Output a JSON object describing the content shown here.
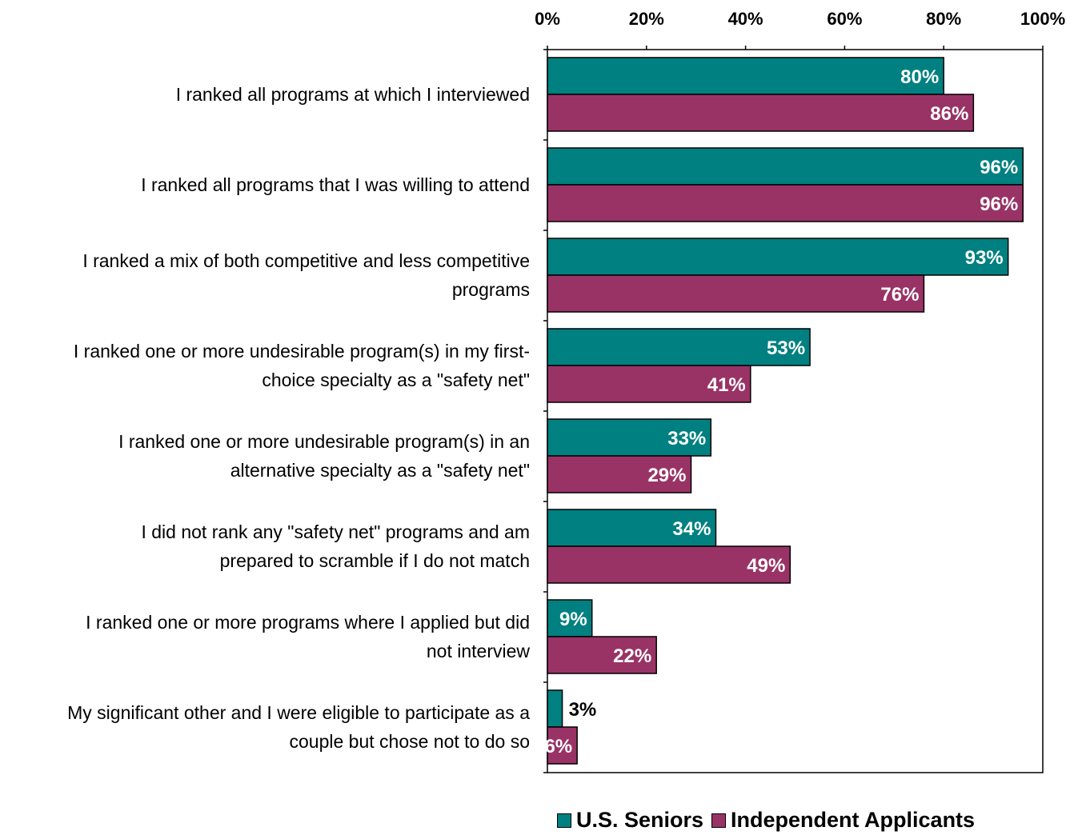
{
  "chart_data": {
    "type": "bar",
    "orientation": "horizontal",
    "x_ticks": [
      "0%",
      "20%",
      "40%",
      "60%",
      "80%",
      "100%"
    ],
    "xlim": [
      0,
      100
    ],
    "categories": [
      [
        "I ranked all programs at which I interviewed"
      ],
      [
        "I ranked all programs that I was willing to attend"
      ],
      [
        "I ranked a mix of both competitive and less competitive",
        "programs"
      ],
      [
        "I ranked one or more undesirable program(s) in my first-",
        "choice specialty as a \"safety net\""
      ],
      [
        "I ranked one or more undesirable program(s) in an",
        "alternative specialty as a \"safety net\""
      ],
      [
        "I did not rank any \"safety net\" programs and am",
        "prepared to scramble if I do not match"
      ],
      [
        "I ranked one or more programs where I applied but did",
        "not interview"
      ],
      [
        "My significant other and I were eligible to participate as a",
        "couple but chose not to do so"
      ]
    ],
    "series": [
      {
        "name": "U.S. Seniors",
        "color": "#008080",
        "values": [
          80,
          96,
          93,
          53,
          33,
          34,
          9,
          3
        ],
        "labels": [
          "80%",
          "96%",
          "93%",
          "53%",
          "33%",
          "34%",
          "9%",
          "3%"
        ]
      },
      {
        "name": "Independent Applicants",
        "color": "#993366",
        "values": [
          86,
          96,
          76,
          41,
          29,
          49,
          22,
          6
        ],
        "labels": [
          "86%",
          "96%",
          "76%",
          "41%",
          "29%",
          "49%",
          "22%",
          "6%"
        ]
      }
    ],
    "legend_position": "bottom",
    "grid": false
  }
}
